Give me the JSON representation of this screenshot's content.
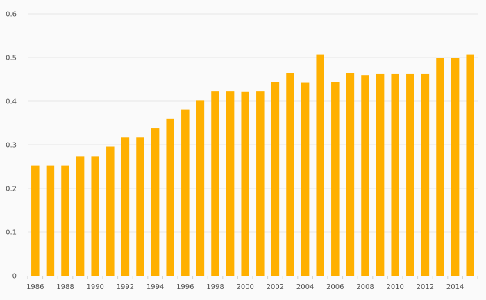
{
  "chart_data": {
    "type": "bar",
    "title": "",
    "xlabel": "",
    "ylabel": "",
    "categories": [
      "1986",
      "1987",
      "1988",
      "1989",
      "1990",
      "1991",
      "1992",
      "1993",
      "1994",
      "1995",
      "1996",
      "1997",
      "1998",
      "1999",
      "2000",
      "2001",
      "2002",
      "2003",
      "2004",
      "2005",
      "2006",
      "2007",
      "2008",
      "2009",
      "2010",
      "2011",
      "2012",
      "2013",
      "2014",
      "2015"
    ],
    "x_tick_labels": [
      "1986",
      "1988",
      "1990",
      "1992",
      "1994",
      "1996",
      "1998",
      "2000",
      "2002",
      "2004",
      "2006",
      "2008",
      "2010",
      "2012",
      "2014"
    ],
    "values": [
      0.253,
      0.253,
      0.253,
      0.274,
      0.274,
      0.296,
      0.317,
      0.317,
      0.338,
      0.359,
      0.38,
      0.401,
      0.422,
      0.422,
      0.421,
      0.422,
      0.443,
      0.465,
      0.442,
      0.507,
      0.443,
      0.465,
      0.46,
      0.462,
      0.462,
      0.462,
      0.462,
      0.499,
      0.499,
      0.507
    ],
    "ylim": [
      0,
      0.6
    ],
    "y_ticks": [
      "0",
      "0.1",
      "0.2",
      "0.3",
      "0.4",
      "0.5",
      "0.6"
    ],
    "grid": true,
    "legend": "none",
    "bar_color": "#ffb000"
  }
}
